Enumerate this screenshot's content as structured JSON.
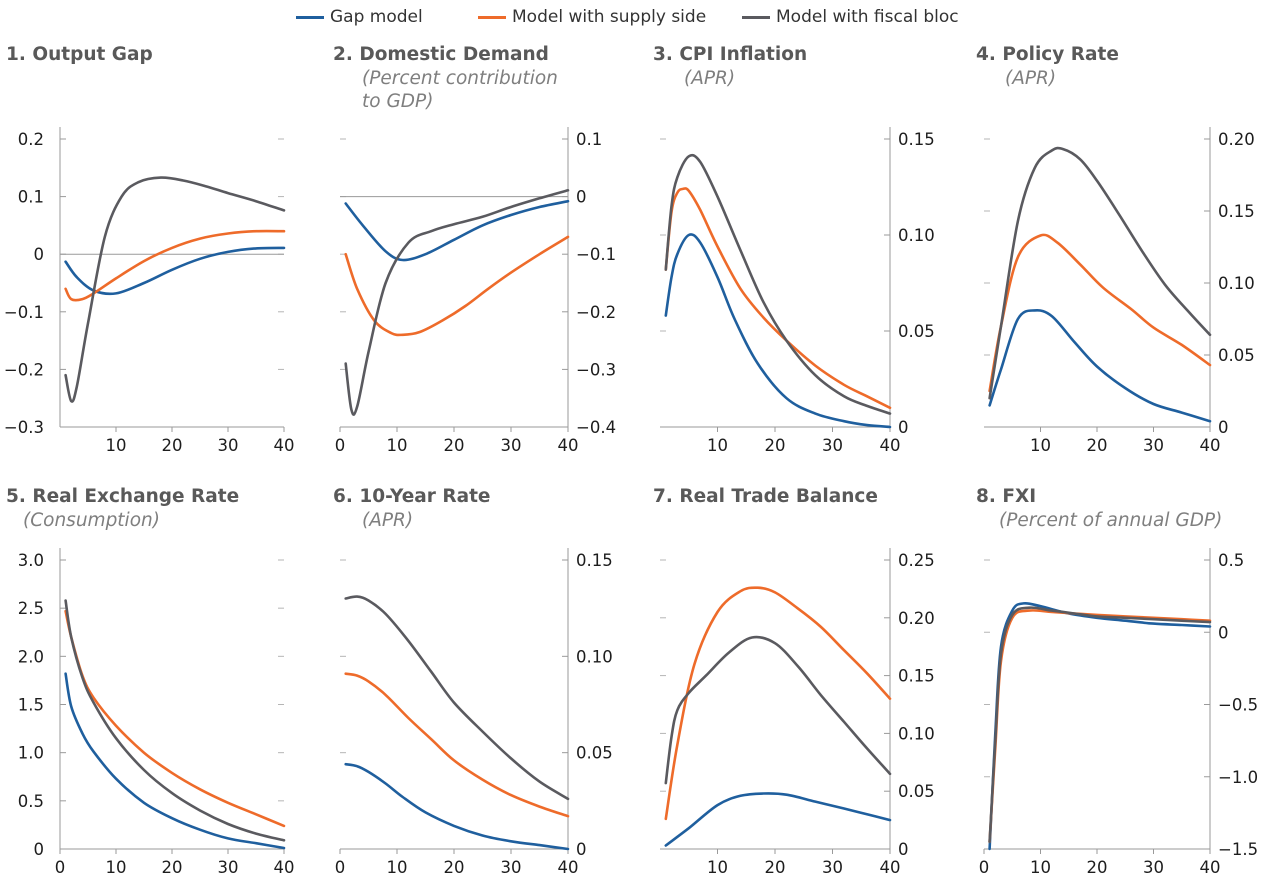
{
  "legend": [
    {
      "label": "Gap model",
      "color": "#1f5f9e"
    },
    {
      "label": "Model with supply side",
      "color": "#ee6b2a"
    },
    {
      "label": "Model with fiscal bloc",
      "color": "#5a5a5f"
    }
  ],
  "chart_data": [
    {
      "type": "line",
      "title": "1. Output Gap",
      "subtitle": [],
      "ylim": [
        -0.3,
        0.2
      ],
      "yticks": [
        "−0.3",
        "−0.2",
        "−0.1",
        "0",
        "0.1",
        "0.2"
      ],
      "yaxis": "left",
      "zero_line": true,
      "xlim": [
        0,
        40
      ],
      "xticks": [
        10,
        20,
        30,
        40
      ],
      "series": [
        {
          "name": "Gap model",
          "x": [
            1,
            3,
            6,
            10,
            15,
            20,
            25,
            30,
            35,
            40
          ],
          "values": [
            -0.013,
            -0.04,
            -0.063,
            -0.068,
            -0.05,
            -0.027,
            -0.008,
            0.004,
            0.01,
            0.011
          ]
        },
        {
          "name": "Model with supply side",
          "x": [
            1,
            2,
            4,
            6,
            10,
            15,
            20,
            25,
            30,
            35,
            40
          ],
          "values": [
            -0.06,
            -0.078,
            -0.078,
            -0.068,
            -0.042,
            -0.012,
            0.011,
            0.027,
            0.036,
            0.04,
            0.04
          ]
        },
        {
          "name": "Model with fiscal bloc",
          "x": [
            1,
            2,
            3,
            5,
            8,
            11,
            14,
            18,
            22,
            26,
            30,
            35,
            40
          ],
          "values": [
            -0.21,
            -0.255,
            -0.23,
            -0.12,
            0.03,
            0.1,
            0.125,
            0.133,
            0.128,
            0.118,
            0.106,
            0.092,
            0.076
          ]
        }
      ]
    },
    {
      "type": "line",
      "title": "2. Domestic Demand",
      "subtitle": [
        "(Percent contribution",
        "to GDP)"
      ],
      "ylim": [
        -0.4,
        0.1
      ],
      "yticks": [
        "−0.4",
        "−0.3",
        "−0.2",
        "−0.1",
        "0",
        "0.1"
      ],
      "yaxis": "right",
      "zero_line": true,
      "xlim": [
        0,
        40
      ],
      "xticks": [
        0,
        10,
        20,
        30,
        40
      ],
      "series": [
        {
          "name": "Gap model",
          "x": [
            1,
            4,
            8,
            11,
            15,
            20,
            25,
            30,
            35,
            40
          ],
          "values": [
            -0.012,
            -0.05,
            -0.095,
            -0.11,
            -0.1,
            -0.075,
            -0.05,
            -0.032,
            -0.018,
            -0.008
          ]
        },
        {
          "name": "Model with supply side",
          "x": [
            1,
            3,
            6,
            9,
            11,
            14,
            18,
            22,
            26,
            30,
            35,
            40
          ],
          "values": [
            -0.1,
            -0.16,
            -0.215,
            -0.237,
            -0.24,
            -0.235,
            -0.215,
            -0.19,
            -0.16,
            -0.132,
            -0.1,
            -0.07
          ]
        },
        {
          "name": "Model with fiscal bloc",
          "x": [
            1,
            2,
            3,
            5,
            8,
            12,
            16,
            20,
            25,
            30,
            35,
            40
          ],
          "values": [
            -0.29,
            -0.37,
            -0.365,
            -0.27,
            -0.15,
            -0.08,
            -0.06,
            -0.048,
            -0.035,
            -0.018,
            -0.003,
            0.011
          ]
        }
      ]
    },
    {
      "type": "line",
      "title": "3. CPI Inflation",
      "subtitle": [
        "(APR)"
      ],
      "ylim": [
        0,
        0.15
      ],
      "yticks": [
        "0",
        "0.05",
        "0.10",
        "0.15"
      ],
      "yaxis": "right",
      "zero_line": false,
      "xlim": [
        0,
        40
      ],
      "xticks": [
        10,
        20,
        30,
        40
      ],
      "series": [
        {
          "name": "Gap model",
          "x": [
            1,
            2,
            3,
            5,
            7,
            10,
            13,
            17,
            22,
            27,
            32,
            36,
            40
          ],
          "values": [
            0.058,
            0.078,
            0.09,
            0.1,
            0.096,
            0.078,
            0.056,
            0.033,
            0.015,
            0.007,
            0.003,
            0.001,
            0
          ]
        },
        {
          "name": "Model with supply side",
          "x": [
            1,
            2,
            3,
            4,
            5,
            7,
            10,
            14,
            18,
            22,
            27,
            32,
            36,
            40
          ],
          "values": [
            0.082,
            0.112,
            0.122,
            0.124,
            0.123,
            0.113,
            0.094,
            0.072,
            0.057,
            0.045,
            0.032,
            0.022,
            0.016,
            0.01
          ]
        },
        {
          "name": "Model with fiscal bloc",
          "x": [
            1,
            2,
            3,
            5,
            7,
            10,
            14,
            18,
            22,
            27,
            32,
            36,
            40
          ],
          "values": [
            0.082,
            0.115,
            0.13,
            0.141,
            0.138,
            0.12,
            0.092,
            0.065,
            0.045,
            0.027,
            0.016,
            0.011,
            0.007
          ]
        }
      ]
    },
    {
      "type": "line",
      "title": "4. Policy Rate",
      "subtitle": [
        "(APR)"
      ],
      "ylim": [
        0,
        0.2
      ],
      "yticks": [
        "0",
        "0.05",
        "0.10",
        "0.15",
        "0.20"
      ],
      "yaxis": "right",
      "zero_line": false,
      "xlim": [
        0,
        40
      ],
      "xticks": [
        10,
        20,
        30,
        40
      ],
      "series": [
        {
          "name": "Gap model",
          "x": [
            1,
            3,
            6,
            9,
            12,
            16,
            20,
            25,
            30,
            35,
            40
          ],
          "values": [
            0.015,
            0.04,
            0.075,
            0.081,
            0.077,
            0.059,
            0.042,
            0.027,
            0.016,
            0.01,
            0.004
          ]
        },
        {
          "name": "Model with supply side",
          "x": [
            1,
            3,
            6,
            10,
            13,
            17,
            21,
            26,
            30,
            35,
            40
          ],
          "values": [
            0.025,
            0.07,
            0.118,
            0.133,
            0.128,
            0.113,
            0.097,
            0.082,
            0.069,
            0.057,
            0.043
          ]
        },
        {
          "name": "Model with fiscal bloc",
          "x": [
            1,
            3,
            6,
            9,
            12,
            14,
            17,
            20,
            24,
            28,
            32,
            36,
            40
          ],
          "values": [
            0.02,
            0.07,
            0.143,
            0.18,
            0.192,
            0.193,
            0.186,
            0.171,
            0.147,
            0.122,
            0.099,
            0.081,
            0.064
          ]
        }
      ]
    },
    {
      "type": "line",
      "title": "5. Real Exchange Rate",
      "subtitle": [
        "(Consumption)"
      ],
      "ylim": [
        0,
        3.0
      ],
      "yticks": [
        "0",
        "0.5",
        "1.0",
        "1.5",
        "2.0",
        "2.5",
        "3.0"
      ],
      "yaxis": "left",
      "zero_line": false,
      "xlim": [
        0,
        40
      ],
      "xticks": [
        0,
        10,
        20,
        30,
        40
      ],
      "series": [
        {
          "name": "Gap model",
          "x": [
            1,
            2,
            4,
            6,
            10,
            15,
            20,
            25,
            30,
            35,
            40
          ],
          "values": [
            1.82,
            1.48,
            1.2,
            1.01,
            0.73,
            0.48,
            0.32,
            0.2,
            0.11,
            0.06,
            0.01
          ]
        },
        {
          "name": "Model with supply side",
          "x": [
            1,
            2,
            4,
            6,
            10,
            15,
            20,
            25,
            30,
            35,
            40
          ],
          "values": [
            2.47,
            2.2,
            1.8,
            1.57,
            1.28,
            1.0,
            0.79,
            0.62,
            0.48,
            0.36,
            0.24
          ]
        },
        {
          "name": "Model with fiscal bloc",
          "x": [
            1,
            2,
            4,
            6,
            10,
            15,
            20,
            25,
            30,
            35,
            40
          ],
          "values": [
            2.58,
            2.2,
            1.78,
            1.52,
            1.15,
            0.82,
            0.58,
            0.4,
            0.26,
            0.16,
            0.09
          ]
        }
      ]
    },
    {
      "type": "line",
      "title": "6. 10-Year Rate",
      "subtitle": [
        "(APR)"
      ],
      "ylim": [
        0,
        0.15
      ],
      "yticks": [
        "0",
        "0.05",
        "0.10",
        "0.15"
      ],
      "yaxis": "right",
      "zero_line": false,
      "xlim": [
        0,
        40
      ],
      "xticks": [
        0,
        10,
        20,
        30,
        40
      ],
      "series": [
        {
          "name": "Gap model",
          "x": [
            1,
            3,
            5,
            8,
            11,
            15,
            20,
            25,
            30,
            35,
            40
          ],
          "values": [
            0.044,
            0.043,
            0.04,
            0.034,
            0.027,
            0.019,
            0.012,
            0.007,
            0.004,
            0.002,
            0
          ]
        },
        {
          "name": "Model with supply side",
          "x": [
            1,
            3,
            5,
            8,
            12,
            16,
            20,
            25,
            30,
            35,
            40
          ],
          "values": [
            0.091,
            0.09,
            0.087,
            0.08,
            0.068,
            0.057,
            0.046,
            0.036,
            0.028,
            0.022,
            0.017
          ]
        },
        {
          "name": "Model with fiscal bloc",
          "x": [
            1,
            3,
            5,
            8,
            12,
            16,
            20,
            25,
            30,
            35,
            40
          ],
          "values": [
            0.13,
            0.131,
            0.129,
            0.122,
            0.108,
            0.092,
            0.076,
            0.061,
            0.047,
            0.035,
            0.026
          ]
        }
      ]
    },
    {
      "type": "line",
      "title": "7. Real Trade Balance",
      "subtitle": [],
      "ylim": [
        0,
        0.25
      ],
      "yticks": [
        "0",
        "0.05",
        "0.10",
        "0.15",
        "0.20",
        "0.25"
      ],
      "yaxis": "right",
      "zero_line": false,
      "xlim": [
        0,
        40
      ],
      "xticks": [
        10,
        20,
        30,
        40
      ],
      "series": [
        {
          "name": "Gap model",
          "x": [
            1,
            5,
            10,
            14,
            18,
            22,
            27,
            32,
            36,
            40
          ],
          "values": [
            0.003,
            0.018,
            0.038,
            0.046,
            0.048,
            0.047,
            0.041,
            0.035,
            0.03,
            0.025
          ]
        },
        {
          "name": "Model with supply side",
          "x": [
            1,
            3,
            6,
            10,
            14,
            17,
            20,
            24,
            28,
            32,
            36,
            40
          ],
          "values": [
            0.026,
            0.09,
            0.16,
            0.205,
            0.223,
            0.226,
            0.222,
            0.208,
            0.192,
            0.172,
            0.152,
            0.13
          ]
        },
        {
          "name": "Model with fiscal bloc",
          "x": [
            1,
            2,
            3,
            5,
            8,
            12,
            16,
            20,
            24,
            28,
            32,
            36,
            40
          ],
          "values": [
            0.057,
            0.097,
            0.12,
            0.135,
            0.15,
            0.17,
            0.183,
            0.178,
            0.158,
            0.133,
            0.11,
            0.087,
            0.065
          ]
        }
      ]
    },
    {
      "type": "line",
      "title": "8. FXI",
      "subtitle": [
        "(Percent of annual GDP)"
      ],
      "ylim": [
        -1.5,
        0.5
      ],
      "yticks": [
        "−1.5",
        "−1.0",
        "−0.5",
        "0",
        "0.5"
      ],
      "yaxis": "right",
      "zero_line": false,
      "xlim": [
        0,
        40
      ],
      "xticks": [
        0,
        10,
        20,
        30,
        40
      ],
      "series": [
        {
          "name": "Gap model",
          "x": [
            1,
            2,
            3,
            5,
            7,
            10,
            15,
            20,
            25,
            30,
            35,
            40
          ],
          "values": [
            -1.5,
            -0.7,
            -0.1,
            0.15,
            0.2,
            0.18,
            0.13,
            0.1,
            0.08,
            0.06,
            0.05,
            0.04
          ]
        },
        {
          "name": "Model with supply side",
          "x": [
            1,
            2,
            3,
            5,
            8,
            12,
            16,
            20,
            25,
            30,
            35,
            40
          ],
          "values": [
            -1.45,
            -0.8,
            -0.2,
            0.1,
            0.15,
            0.14,
            0.13,
            0.12,
            0.11,
            0.1,
            0.09,
            0.08
          ]
        },
        {
          "name": "Model with fiscal bloc",
          "x": [
            1,
            2,
            3,
            5,
            8,
            12,
            16,
            20,
            25,
            30,
            35,
            40
          ],
          "values": [
            -1.45,
            -0.75,
            -0.15,
            0.12,
            0.17,
            0.15,
            0.13,
            0.11,
            0.1,
            0.09,
            0.08,
            0.07
          ]
        }
      ]
    }
  ]
}
